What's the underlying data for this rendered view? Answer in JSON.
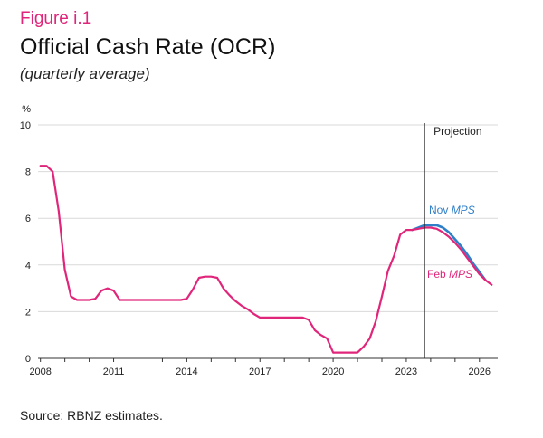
{
  "figure": {
    "label": "Figure i.1",
    "title": "Official Cash Rate (OCR)",
    "subtitle": "(quarterly average)",
    "source": "Source: RBNZ estimates."
  },
  "colors": {
    "feb": "#e0267a",
    "nov": "#2f7fc8",
    "grid": "#d9d9d9",
    "axis": "#333333",
    "accent": "#e0267a"
  },
  "chart_data": {
    "type": "line",
    "title": "Official Cash Rate (OCR)",
    "ylabel": "%",
    "ylim": [
      0,
      10
    ],
    "yticks": [
      0,
      2,
      4,
      6,
      8,
      10
    ],
    "xlim": [
      2007.9,
      2026.75
    ],
    "xticks": [
      2008,
      2011,
      2014,
      2017,
      2020,
      2023,
      2026
    ],
    "grid": true,
    "projection": {
      "x": 2023.75,
      "label": "Projection"
    },
    "series": [
      {
        "name": "Feb",
        "label_main": "Feb ",
        "label_italic": "MPS",
        "color": "#e0267a",
        "x": [
          2008.0,
          2008.25,
          2008.5,
          2008.75,
          2009.0,
          2009.25,
          2009.5,
          2009.75,
          2010.0,
          2010.25,
          2010.5,
          2010.75,
          2011.0,
          2011.25,
          2011.5,
          2011.75,
          2012.0,
          2012.5,
          2013.0,
          2013.5,
          2013.75,
          2014.0,
          2014.25,
          2014.5,
          2014.75,
          2015.0,
          2015.25,
          2015.5,
          2015.75,
          2016.0,
          2016.25,
          2016.5,
          2016.75,
          2017.0,
          2017.5,
          2018.0,
          2018.5,
          2018.75,
          2019.0,
          2019.25,
          2019.5,
          2019.75,
          2020.0,
          2020.25,
          2020.5,
          2020.75,
          2021.0,
          2021.25,
          2021.5,
          2021.75,
          2022.0,
          2022.25,
          2022.5,
          2022.75,
          2023.0,
          2023.25,
          2023.5,
          2023.75,
          2024.0,
          2024.25,
          2024.5,
          2024.75,
          2025.0,
          2025.25,
          2025.5,
          2025.75,
          2026.0,
          2026.25,
          2026.5
        ],
        "values": [
          8.25,
          8.25,
          8.0,
          6.3,
          3.8,
          2.65,
          2.5,
          2.5,
          2.5,
          2.55,
          2.9,
          3.0,
          2.9,
          2.5,
          2.5,
          2.5,
          2.5,
          2.5,
          2.5,
          2.5,
          2.5,
          2.55,
          2.95,
          3.45,
          3.5,
          3.5,
          3.45,
          3.0,
          2.7,
          2.45,
          2.25,
          2.1,
          1.9,
          1.75,
          1.75,
          1.75,
          1.75,
          1.75,
          1.65,
          1.2,
          1.0,
          0.85,
          0.25,
          0.25,
          0.25,
          0.25,
          0.25,
          0.5,
          0.85,
          1.6,
          2.65,
          3.75,
          4.4,
          5.3,
          5.5,
          5.5,
          5.55,
          5.6,
          5.6,
          5.55,
          5.4,
          5.2,
          4.95,
          4.65,
          4.3,
          3.95,
          3.6,
          3.35,
          3.15
        ]
      },
      {
        "name": "Nov",
        "label_main": "Nov ",
        "label_italic": "MPS",
        "color": "#2f7fc8",
        "x": [
          2023.25,
          2023.5,
          2023.75,
          2024.0,
          2024.25,
          2024.5,
          2024.75,
          2025.0,
          2025.25,
          2025.5,
          2025.75,
          2026.0,
          2026.25
        ],
        "values": [
          5.5,
          5.6,
          5.7,
          5.7,
          5.7,
          5.6,
          5.4,
          5.1,
          4.8,
          4.45,
          4.05,
          3.7,
          3.35
        ]
      }
    ]
  }
}
